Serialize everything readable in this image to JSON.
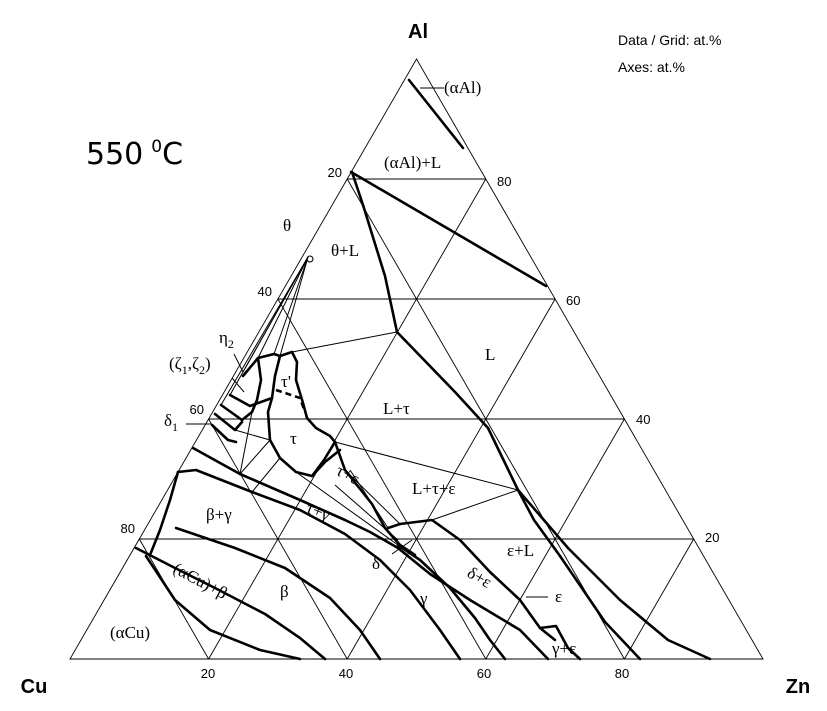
{
  "corners": {
    "top": "Al",
    "left": "Cu",
    "right": "Zn"
  },
  "notes": {
    "data_grid": "Data / Grid: at.%",
    "axes": "Axes: at.%"
  },
  "temperature": {
    "value": "550",
    "unit": "C",
    "degree": "0"
  },
  "ticks": {
    "bottom": [
      "20",
      "40",
      "60",
      "80"
    ],
    "left": [
      "20",
      "40",
      "60",
      "80"
    ],
    "right": [
      "80",
      "60",
      "40",
      "20"
    ]
  },
  "phases": {
    "alAl": "(αAl)",
    "alAl_L": "(αAl)+L",
    "theta": "θ",
    "theta_L": "θ+L",
    "eta": "η",
    "eta_sub": "2",
    "zeta_open": "(ζ",
    "zeta_sub1": "1",
    "zeta_mid": ",ζ",
    "zeta_sub2": "2",
    "zeta_close": ")",
    "delta1": "δ",
    "delta1_sub": "1",
    "tau_prime": "τ'",
    "tau": "τ",
    "L": "L",
    "L_tau": "L+τ",
    "tau_eps": "τ+ε",
    "L_tau_eps": "L+τ+ε",
    "beta_gamma": "β+γ",
    "tau_gamma": "τ+γ",
    "delta": "δ",
    "delta_eps": "δ+ε",
    "eps_L": "ε+L",
    "eps": "ε",
    "aCu_beta": "(αCu)+β",
    "beta": "β",
    "gamma": "γ",
    "gamma_eps": "γ+ε",
    "aCu": "(αCu)"
  }
}
